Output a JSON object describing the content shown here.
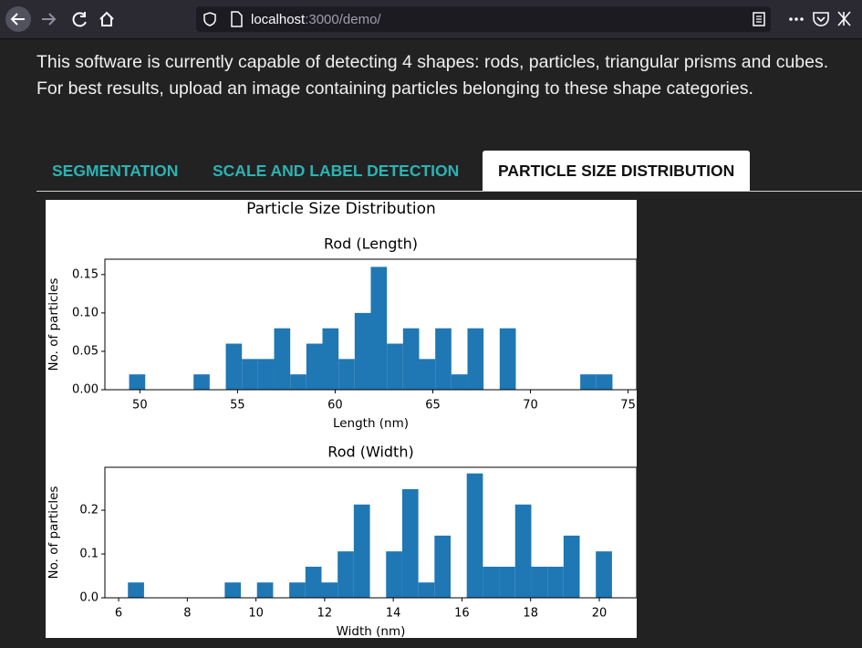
{
  "browser": {
    "url_host": "localhost",
    "url_rest": ":3000/demo/"
  },
  "intro": [
    "This software is currently capable of detecting 4 shapes: rods, particles, triangular prisms and cubes.",
    "For best results, upload an image containing particles belonging to these shape categories."
  ],
  "tabs": [
    "SEGMENTATION",
    "SCALE AND LABEL DETECTION",
    "PARTICLE SIZE DISTRIBUTION"
  ],
  "figure_title": "Particle Size Distribution",
  "chart_data": [
    {
      "type": "histogram",
      "title": "Rod (Length)",
      "xlabel": "Length (nm)",
      "ylabel": "No. of particles",
      "color": "#1f77b4",
      "bins": [
        49.45,
        50.275,
        51.1,
        51.925,
        52.75,
        53.575,
        54.4,
        55.225,
        56.05,
        56.875,
        57.7,
        58.525,
        59.35,
        60.175,
        61.0,
        61.825,
        62.65,
        63.475,
        64.3,
        65.125,
        65.95,
        66.775,
        67.6,
        68.425,
        69.25,
        70.075,
        70.9,
        71.725,
        72.55,
        73.375,
        74.2
      ],
      "values": [
        0.02,
        0,
        0,
        0,
        0.02,
        0,
        0.06,
        0.04,
        0.04,
        0.08,
        0.02,
        0.06,
        0.08,
        0.04,
        0.1,
        0.16,
        0.06,
        0.08,
        0.04,
        0.08,
        0.02,
        0.08,
        0,
        0.08,
        0,
        0,
        0,
        0,
        0.02,
        0.02
      ],
      "xlim": [
        48.21,
        75.44
      ],
      "ylim": [
        0,
        0.17
      ],
      "xticks": [
        50,
        55,
        60,
        65,
        70,
        75
      ],
      "yticks": [
        {
          "value": 0,
          "label": "0.00"
        },
        {
          "value": 0.05,
          "label": "0.05"
        },
        {
          "value": 0.1,
          "label": "0.10"
        },
        {
          "value": 0.15,
          "label": "0.15"
        }
      ]
    },
    {
      "type": "histogram",
      "title": "Rod (Width)",
      "xlabel": "Width (nm)",
      "ylabel": "No. of particles",
      "color": "#1f77b4",
      "bins": [
        6.27,
        6.74,
        7.21,
        7.68,
        8.15,
        8.62,
        9.09,
        9.56,
        10.03,
        10.5,
        10.97,
        11.44,
        11.91,
        12.38,
        12.85,
        13.32,
        13.79,
        14.26,
        14.73,
        15.2,
        15.67,
        16.14,
        16.61,
        17.08,
        17.55,
        18.02,
        18.49,
        18.96,
        19.43,
        19.9,
        20.37
      ],
      "values": [
        0.035,
        0,
        0,
        0,
        0,
        0,
        0.035,
        0,
        0.035,
        0,
        0.035,
        0.071,
        0.035,
        0.106,
        0.213,
        0,
        0.106,
        0.248,
        0.035,
        0.142,
        0,
        0.284,
        0.071,
        0.071,
        0.213,
        0.071,
        0.071,
        0.142,
        0,
        0.106
      ],
      "xlim": [
        5.6,
        21.09
      ],
      "ylim": [
        0,
        0.298
      ],
      "xticks": [
        6,
        8,
        10,
        12,
        14,
        16,
        18,
        20
      ],
      "yticks": [
        {
          "value": 0,
          "label": "0.0"
        },
        0.1,
        0.2
      ]
    }
  ]
}
